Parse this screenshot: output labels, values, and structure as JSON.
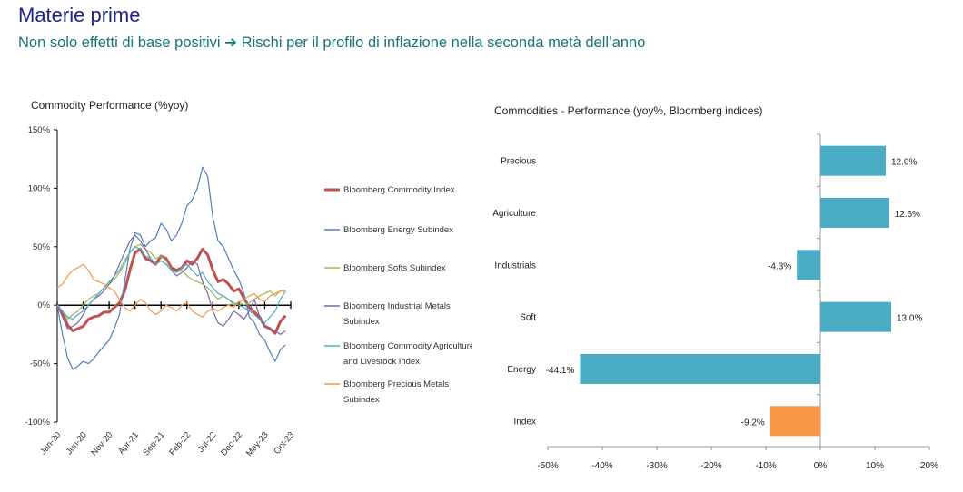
{
  "slide": {
    "title": "Materie prime",
    "subtitle": "Non solo effetti di base positivi ➔ Rischi per il profilo di inflazione nella seconda metà dell’anno"
  },
  "chart_data": [
    {
      "type": "line",
      "title": "Commodity Performance (%yoy)",
      "xlabel": "",
      "ylabel": "",
      "x_ticks": [
        "Jan-20",
        "Jun-20",
        "Nov-20",
        "Apr-21",
        "Sep-21",
        "Feb-22",
        "Jul-22",
        "Dec-22",
        "May-23",
        "Oct-23"
      ],
      "y_ticks": [
        "150%",
        "100%",
        "50%",
        "0%",
        "-50%",
        "-100%"
      ],
      "ylim": [
        -100,
        150
      ],
      "x_unit": "months since Jan-20",
      "legend_position": "right",
      "series": [
        {
          "name": "Bloomberg Commodity Index",
          "color": "#c0504d",
          "width": 3,
          "points": [
            [
              0,
              0
            ],
            [
              1,
              -7
            ],
            [
              2,
              -17
            ],
            [
              3,
              -22
            ],
            [
              4,
              -20
            ],
            [
              5,
              -18
            ],
            [
              6,
              -12
            ],
            [
              7,
              -10
            ],
            [
              8,
              -9
            ],
            [
              9,
              -6
            ],
            [
              10,
              -6
            ],
            [
              11,
              -2
            ],
            [
              12,
              2
            ],
            [
              13,
              12
            ],
            [
              14,
              30
            ],
            [
              15,
              45
            ],
            [
              16,
              48
            ],
            [
              17,
              40
            ],
            [
              18,
              38
            ],
            [
              19,
              35
            ],
            [
              20,
              42
            ],
            [
              21,
              40
            ],
            [
              22,
              32
            ],
            [
              23,
              30
            ],
            [
              24,
              32
            ],
            [
              25,
              38
            ],
            [
              26,
              35
            ],
            [
              27,
              40
            ],
            [
              28,
              48
            ],
            [
              29,
              43
            ],
            [
              30,
              30
            ],
            [
              31,
              20
            ],
            [
              32,
              22
            ],
            [
              33,
              18
            ],
            [
              34,
              12
            ],
            [
              35,
              14
            ],
            [
              36,
              6
            ],
            [
              37,
              -2
            ],
            [
              38,
              -6
            ],
            [
              39,
              -10
            ],
            [
              40,
              -18
            ],
            [
              41,
              -20
            ],
            [
              42,
              -24
            ],
            [
              43,
              -14
            ],
            [
              44,
              -9
            ]
          ]
        },
        {
          "name": "Bloomberg Energy Subindex",
          "color": "#4f81bd",
          "width": 1.2,
          "points": [
            [
              0,
              0
            ],
            [
              1,
              -25
            ],
            [
              2,
              -45
            ],
            [
              3,
              -55
            ],
            [
              4,
              -52
            ],
            [
              5,
              -48
            ],
            [
              6,
              -50
            ],
            [
              7,
              -46
            ],
            [
              8,
              -40
            ],
            [
              9,
              -35
            ],
            [
              10,
              -30
            ],
            [
              11,
              -20
            ],
            [
              12,
              -8
            ],
            [
              13,
              20
            ],
            [
              14,
              48
            ],
            [
              15,
              62
            ],
            [
              16,
              60
            ],
            [
              17,
              50
            ],
            [
              18,
              55
            ],
            [
              19,
              58
            ],
            [
              20,
              70
            ],
            [
              21,
              65
            ],
            [
              22,
              55
            ],
            [
              23,
              60
            ],
            [
              24,
              70
            ],
            [
              25,
              85
            ],
            [
              26,
              90
            ],
            [
              27,
              100
            ],
            [
              28,
              118
            ],
            [
              29,
              110
            ],
            [
              30,
              75
            ],
            [
              31,
              55
            ],
            [
              32,
              50
            ],
            [
              33,
              40
            ],
            [
              34,
              30
            ],
            [
              35,
              22
            ],
            [
              36,
              10
            ],
            [
              37,
              -10
            ],
            [
              38,
              -15
            ],
            [
              39,
              -25
            ],
            [
              40,
              -30
            ],
            [
              41,
              -40
            ],
            [
              42,
              -48
            ],
            [
              43,
              -38
            ],
            [
              44,
              -34
            ]
          ]
        },
        {
          "name": "Bloomberg Softs Subindex",
          "color": "#9bbb59",
          "width": 1.2,
          "points": [
            [
              0,
              0
            ],
            [
              1,
              -5
            ],
            [
              2,
              -12
            ],
            [
              3,
              -8
            ],
            [
              4,
              -5
            ],
            [
              5,
              0
            ],
            [
              6,
              5
            ],
            [
              7,
              8
            ],
            [
              8,
              10
            ],
            [
              9,
              15
            ],
            [
              10,
              18
            ],
            [
              11,
              22
            ],
            [
              12,
              28
            ],
            [
              13,
              35
            ],
            [
              14,
              45
            ],
            [
              15,
              50
            ],
            [
              16,
              52
            ],
            [
              17,
              48
            ],
            [
              18,
              45
            ],
            [
              19,
              40
            ],
            [
              20,
              42
            ],
            [
              21,
              38
            ],
            [
              22,
              30
            ],
            [
              23,
              28
            ],
            [
              24,
              30
            ],
            [
              25,
              25
            ],
            [
              26,
              22
            ],
            [
              27,
              20
            ],
            [
              28,
              18
            ],
            [
              29,
              15
            ],
            [
              30,
              10
            ],
            [
              31,
              5
            ],
            [
              32,
              8
            ],
            [
              33,
              5
            ],
            [
              34,
              0
            ],
            [
              35,
              3
            ],
            [
              36,
              0
            ],
            [
              37,
              2
            ],
            [
              38,
              5
            ],
            [
              39,
              8
            ],
            [
              40,
              10
            ],
            [
              41,
              12
            ],
            [
              42,
              8
            ],
            [
              43,
              12
            ],
            [
              44,
              13
            ]
          ]
        },
        {
          "name": "Bloomberg Industrial Metals Subindex",
          "color": "#8064a2",
          "width": 1.2,
          "points": [
            [
              0,
              0
            ],
            [
              1,
              -10
            ],
            [
              2,
              -20
            ],
            [
              3,
              -18
            ],
            [
              4,
              -15
            ],
            [
              5,
              -8
            ],
            [
              6,
              0
            ],
            [
              7,
              5
            ],
            [
              8,
              8
            ],
            [
              9,
              12
            ],
            [
              10,
              18
            ],
            [
              11,
              25
            ],
            [
              12,
              35
            ],
            [
              13,
              45
            ],
            [
              14,
              55
            ],
            [
              15,
              60
            ],
            [
              16,
              55
            ],
            [
              17,
              48
            ],
            [
              18,
              40
            ],
            [
              19,
              35
            ],
            [
              20,
              38
            ],
            [
              21,
              35
            ],
            [
              22,
              30
            ],
            [
              23,
              25
            ],
            [
              24,
              28
            ],
            [
              25,
              32
            ],
            [
              26,
              38
            ],
            [
              27,
              35
            ],
            [
              28,
              20
            ],
            [
              29,
              10
            ],
            [
              30,
              -5
            ],
            [
              31,
              -15
            ],
            [
              32,
              -18
            ],
            [
              33,
              -12
            ],
            [
              34,
              -5
            ],
            [
              35,
              -8
            ],
            [
              36,
              -12
            ],
            [
              37,
              -5
            ],
            [
              38,
              5
            ],
            [
              39,
              -10
            ],
            [
              40,
              -18
            ],
            [
              41,
              -20
            ],
            [
              42,
              -22
            ],
            [
              43,
              -25
            ],
            [
              44,
              -22
            ]
          ]
        },
        {
          "name": "Bloomberg Commodity Agriculture and Livestock Index",
          "color": "#4bacc6",
          "width": 1.2,
          "points": [
            [
              0,
              0
            ],
            [
              1,
              -5
            ],
            [
              2,
              -10
            ],
            [
              3,
              -12
            ],
            [
              4,
              -8
            ],
            [
              5,
              -5
            ],
            [
              6,
              0
            ],
            [
              7,
              5
            ],
            [
              8,
              10
            ],
            [
              9,
              15
            ],
            [
              10,
              20
            ],
            [
              11,
              25
            ],
            [
              12,
              30
            ],
            [
              13,
              38
            ],
            [
              14,
              45
            ],
            [
              15,
              50
            ],
            [
              16,
              48
            ],
            [
              17,
              42
            ],
            [
              18,
              40
            ],
            [
              19,
              35
            ],
            [
              20,
              38
            ],
            [
              21,
              35
            ],
            [
              22,
              30
            ],
            [
              23,
              28
            ],
            [
              24,
              32
            ],
            [
              25,
              35
            ],
            [
              26,
              30
            ],
            [
              27,
              25
            ],
            [
              28,
              28
            ],
            [
              29,
              20
            ],
            [
              30,
              15
            ],
            [
              31,
              10
            ],
            [
              32,
              8
            ],
            [
              33,
              5
            ],
            [
              34,
              2
            ],
            [
              35,
              0
            ],
            [
              36,
              -2
            ],
            [
              37,
              -5
            ],
            [
              38,
              -8
            ],
            [
              39,
              -12
            ],
            [
              40,
              -15
            ],
            [
              41,
              -10
            ],
            [
              42,
              -5
            ],
            [
              43,
              5
            ],
            [
              44,
              12
            ]
          ]
        },
        {
          "name": "Bloomberg Precious Metals Subindex",
          "color": "#f79646",
          "width": 1.2,
          "points": [
            [
              0,
              15
            ],
            [
              1,
              18
            ],
            [
              2,
              25
            ],
            [
              3,
              30
            ],
            [
              4,
              32
            ],
            [
              5,
              35
            ],
            [
              6,
              30
            ],
            [
              7,
              22
            ],
            [
              8,
              20
            ],
            [
              9,
              18
            ],
            [
              10,
              15
            ],
            [
              11,
              12
            ],
            [
              12,
              5
            ],
            [
              13,
              -2
            ],
            [
              14,
              -5
            ],
            [
              15,
              0
            ],
            [
              16,
              5
            ],
            [
              17,
              2
            ],
            [
              18,
              -5
            ],
            [
              19,
              -8
            ],
            [
              20,
              -5
            ],
            [
              21,
              0
            ],
            [
              22,
              -2
            ],
            [
              23,
              -5
            ],
            [
              24,
              0
            ],
            [
              25,
              2
            ],
            [
              26,
              -5
            ],
            [
              27,
              -8
            ],
            [
              28,
              -10
            ],
            [
              29,
              -5
            ],
            [
              30,
              -3
            ],
            [
              31,
              -5
            ],
            [
              32,
              -2
            ],
            [
              33,
              0
            ],
            [
              34,
              -2
            ],
            [
              35,
              3
            ],
            [
              36,
              5
            ],
            [
              37,
              8
            ],
            [
              38,
              10
            ],
            [
              39,
              5
            ],
            [
              40,
              3
            ],
            [
              41,
              8
            ],
            [
              42,
              10
            ],
            [
              43,
              12
            ],
            [
              44,
              12
            ]
          ]
        }
      ]
    },
    {
      "type": "bar",
      "orientation": "horizontal",
      "title": "Commodities - Performance (yoy%, Bloomberg indices)",
      "xlabel": "",
      "ylabel": "",
      "xlim": [
        -50,
        20
      ],
      "x_ticks": [
        "-50%",
        "-40%",
        "-30%",
        "-20%",
        "-10%",
        "0%",
        "10%",
        "20%"
      ],
      "categories": [
        "Precious",
        "Agriculture",
        "Industrials",
        "Soft",
        "Energy",
        "Index"
      ],
      "values": [
        12.0,
        12.6,
        -4.3,
        13.0,
        -44.1,
        -9.2
      ],
      "value_labels": [
        "12.0%",
        "12.6%",
        "-4.3%",
        "13.0%",
        "-44.1%",
        "-9.2%"
      ],
      "colors": [
        "#4bacc6",
        "#4bacc6",
        "#4bacc6",
        "#4bacc6",
        "#4bacc6",
        "#f79646"
      ]
    }
  ]
}
